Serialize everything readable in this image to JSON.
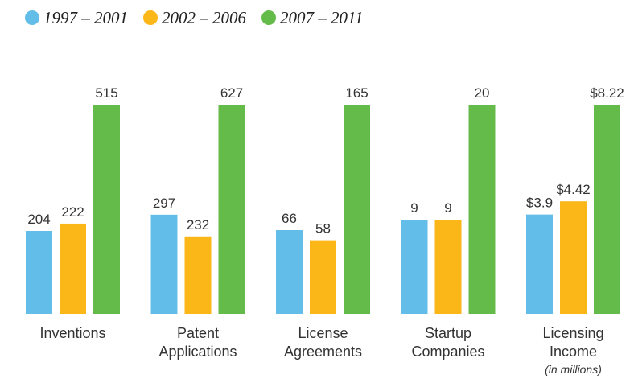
{
  "chart_data": {
    "type": "bar",
    "categories": [
      "Inventions",
      "Patent Applications",
      "License Agreements",
      "Startup Companies",
      "Licensing Income"
    ],
    "annotation": "(in millions)",
    "series": [
      {
        "name": "1997 – 2001",
        "color": "#63bde9",
        "values": [
          204,
          297,
          66,
          9,
          3.9
        ],
        "value_labels": [
          "204",
          "297",
          "66",
          "9",
          "$3.9"
        ]
      },
      {
        "name": "2002 – 2006",
        "color": "#fbb617",
        "values": [
          222,
          232,
          58,
          9,
          4.42
        ],
        "value_labels": [
          "222",
          "232",
          "58",
          "9",
          "$4.42"
        ]
      },
      {
        "name": "2007 – 2011",
        "color": "#65bb4a",
        "values": [
          515,
          627,
          165,
          20,
          8.22
        ],
        "value_labels": [
          "515",
          "627",
          "165",
          "20",
          "$8.22"
        ]
      }
    ]
  }
}
